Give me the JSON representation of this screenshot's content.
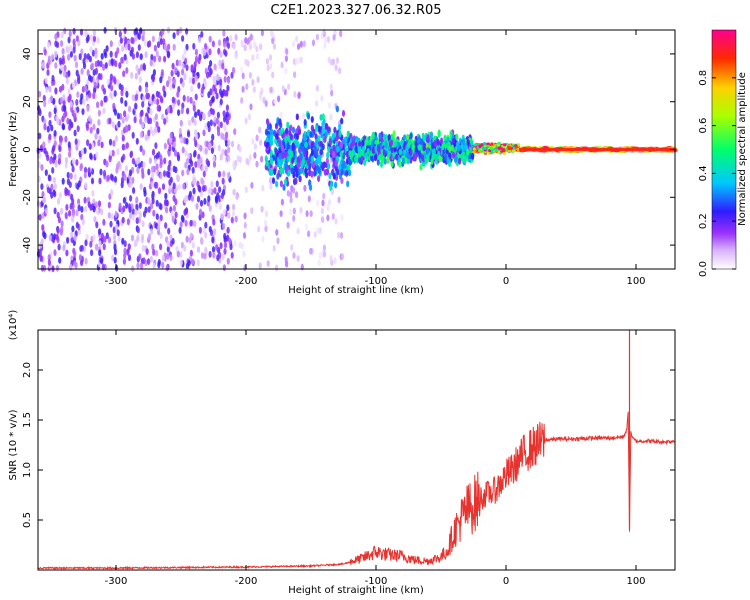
{
  "title": "C2E1.2023.327.06.32.R05",
  "chart_data": [
    {
      "type": "heatmap",
      "xlabel": "Height of straight line (km)",
      "ylabel": "Frequency (Hz)",
      "xlim": [
        -360,
        130
      ],
      "ylim": [
        -50,
        50
      ],
      "x_ticks": [
        -300,
        -200,
        -100,
        0,
        100
      ],
      "y_ticks": [
        -40,
        -20,
        0,
        20,
        40
      ],
      "colorbar": {
        "label": "Normalized spectral amplitude",
        "range": [
          0.0,
          1.0
        ],
        "ticks": [
          0.0,
          0.2,
          0.4,
          0.6,
          0.8
        ],
        "colormap": "white-violet-blue-cyan-green-yellow-red-magenta"
      },
      "regions": [
        {
          "x_range": [
            -360,
            -210
          ],
          "freq_range": [
            -50,
            50
          ],
          "amplitude": 0.1
        },
        {
          "x_range": [
            -210,
            -125
          ],
          "freq_range": [
            -50,
            50
          ],
          "amplitude": 0.03
        },
        {
          "x_range": [
            -185,
            -120
          ],
          "freq_range": [
            -20,
            18
          ],
          "amplitude": 0.25
        },
        {
          "x_range": [
            -120,
            -25
          ],
          "freq_range": [
            -8,
            8
          ],
          "amplitude": 0.3
        },
        {
          "x_range": [
            -25,
            10
          ],
          "freq_range": [
            -2,
            3
          ],
          "amplitude": 0.7
        },
        {
          "x_range": [
            10,
            130
          ],
          "freq_range": [
            -1,
            1
          ],
          "amplitude": 0.95
        }
      ],
      "grid": false
    },
    {
      "type": "line",
      "xlabel": "Height of straight line (km)",
      "ylabel": "SNR (10 * v/v)",
      "y_multiplier": "(x10⁴)",
      "xlim": [
        -360,
        130
      ],
      "ylim": [
        0,
        24000
      ],
      "x_ticks": [
        -300,
        -200,
        -100,
        0,
        100
      ],
      "y_ticks": [
        5000,
        10000,
        15000,
        20000
      ],
      "y_tick_labels": [
        "0.5",
        "1.0",
        "1.5",
        "2.0"
      ],
      "series": [
        {
          "color": "#e8322d",
          "x": [
            -360,
            -300,
            -250,
            -200,
            -150,
            -125,
            -110,
            -100,
            -90,
            -80,
            -70,
            -60,
            -50,
            -45,
            -40,
            -35,
            -30,
            -25,
            -20,
            -15,
            -10,
            -5,
            0,
            5,
            10,
            15,
            20,
            25,
            30,
            40,
            50,
            60,
            70,
            80,
            90,
            93,
            94,
            95,
            96,
            97,
            100,
            110,
            120,
            130
          ],
          "values": [
            200,
            200,
            250,
            300,
            400,
            600,
            1200,
            1800,
            1500,
            1400,
            1000,
            900,
            1300,
            2000,
            3800,
            5000,
            6000,
            6500,
            7200,
            7600,
            7800,
            8500,
            9500,
            10000,
            11000,
            11800,
            12200,
            12600,
            13000,
            13100,
            13100,
            13150,
            13200,
            13200,
            13300,
            14000,
            16000,
            4000,
            14000,
            13200,
            12900,
            12900,
            12800,
            12900
          ]
        }
      ],
      "grid": false
    }
  ]
}
